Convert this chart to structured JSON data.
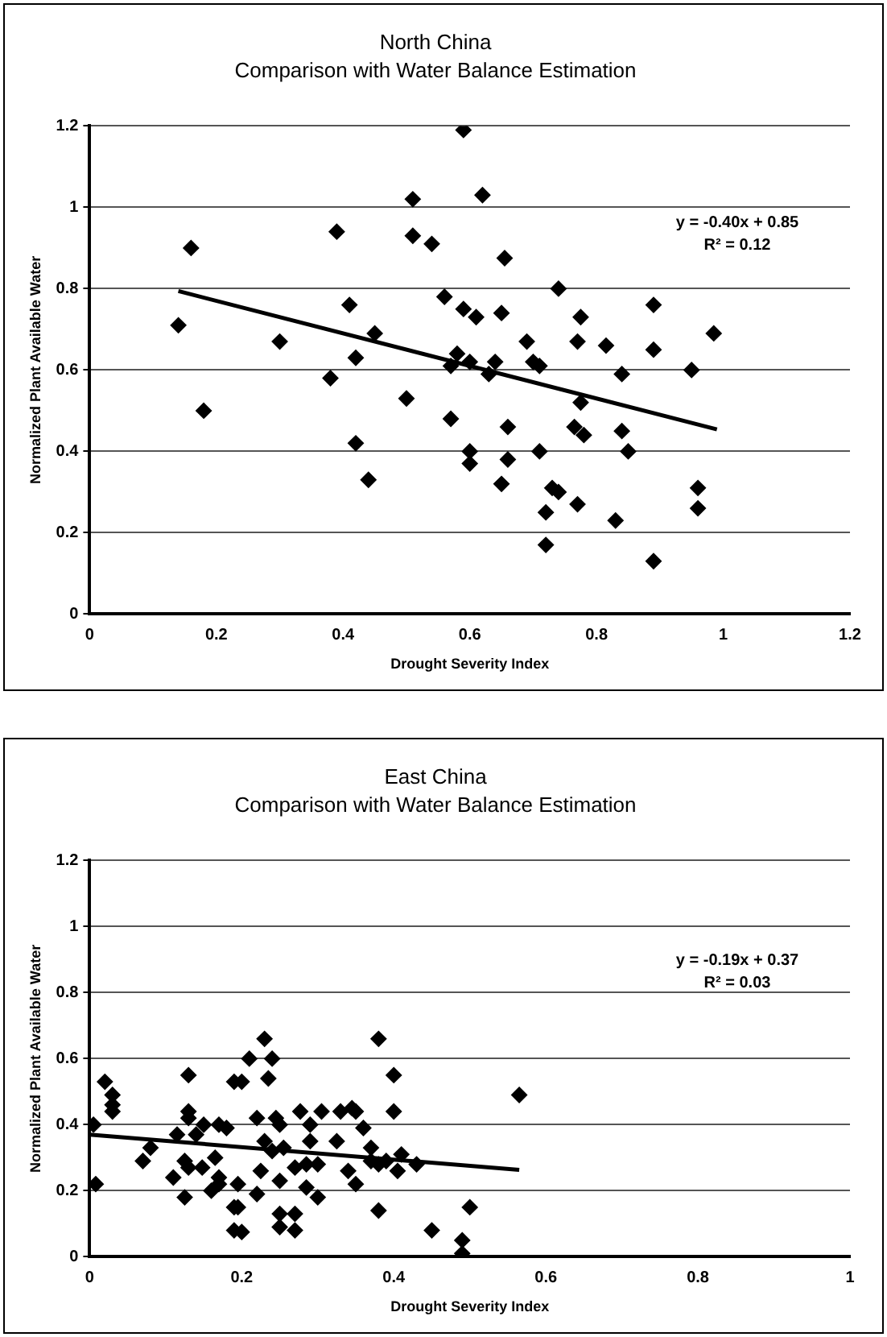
{
  "chart_data": [
    {
      "type": "scatter",
      "title": "North China",
      "subtitle": "Comparison with Water Balance Estimation",
      "xlabel": "Drought Severity Index",
      "ylabel": "Normalized Plant Available Water",
      "xlim": [
        0,
        1.2
      ],
      "xticks": [
        0,
        0.2,
        0.4,
        0.6,
        0.8,
        1,
        1.2
      ],
      "ylim": [
        0,
        1.2
      ],
      "yticks": [
        0,
        0.2,
        0.4,
        0.6,
        0.8,
        1,
        1.2
      ],
      "grid": "y",
      "legend": false,
      "annotations": [
        "y = -0.40x + 0.85",
        "R² = 0.12"
      ],
      "series": [
        {
          "type": "scatter",
          "color": "#000000",
          "marker": "diamond",
          "x": [
            0.14,
            0.16,
            0.18,
            0.3,
            0.39,
            0.41,
            0.42,
            0.42,
            0.44,
            0.45,
            0.38,
            0.5,
            0.51,
            0.51,
            0.54,
            0.56,
            0.57,
            0.57,
            0.58,
            0.59,
            0.59,
            0.61,
            0.62,
            0.6,
            0.6,
            0.6,
            0.63,
            0.655,
            0.74,
            0.65,
            0.69,
            0.7,
            0.71,
            0.64,
            0.775,
            0.77,
            0.815,
            0.84,
            0.89,
            0.89,
            0.985,
            0.95,
            0.775,
            0.765,
            0.78,
            0.84,
            0.85,
            0.66,
            0.66,
            0.65,
            0.71,
            0.73,
            0.74,
            0.77,
            0.72,
            0.72,
            0.83,
            0.89,
            0.96,
            0.96
          ],
          "values": [
            0.71,
            0.9,
            0.5,
            0.67,
            0.94,
            0.76,
            0.63,
            0.42,
            0.33,
            0.69,
            0.58,
            0.53,
            1.02,
            0.93,
            0.91,
            0.78,
            0.48,
            0.61,
            0.64,
            1.19,
            0.75,
            0.73,
            1.03,
            0.37,
            0.4,
            0.62,
            0.59,
            0.875,
            0.8,
            0.74,
            0.67,
            0.62,
            0.61,
            0.62,
            0.73,
            0.67,
            0.66,
            0.59,
            0.76,
            0.65,
            0.69,
            0.6,
            0.52,
            0.46,
            0.44,
            0.45,
            0.4,
            0.46,
            0.38,
            0.32,
            0.4,
            0.31,
            0.3,
            0.27,
            0.25,
            0.17,
            0.23,
            0.13,
            0.31,
            0.26
          ]
        },
        {
          "type": "line",
          "color": "#000000",
          "marker": "none",
          "x": [
            0.14,
            0.99
          ],
          "values": [
            0.794,
            0.454
          ]
        }
      ]
    },
    {
      "type": "scatter",
      "title": "East China",
      "subtitle": "Comparison with Water Balance Estimation",
      "xlabel": "Drought Severity Index",
      "ylabel": "Normalized Plant Available Water",
      "xlim": [
        0,
        1
      ],
      "xticks": [
        0,
        0.2,
        0.4,
        0.6,
        0.8,
        1
      ],
      "ylim": [
        0,
        1.2
      ],
      "yticks": [
        0,
        0.2,
        0.4,
        0.6,
        0.8,
        1,
        1.2
      ],
      "grid": "y",
      "legend": false,
      "annotations": [
        "y = -0.19x + 0.37",
        "R² = 0.03"
      ],
      "series": [
        {
          "type": "scatter",
          "color": "#000000",
          "marker": "diamond",
          "x": [
            0.005,
            0.008,
            0.02,
            0.03,
            0.03,
            0.03,
            0.07,
            0.08,
            0.13,
            0.11,
            0.115,
            0.125,
            0.13,
            0.13,
            0.14,
            0.15,
            0.125,
            0.13,
            0.148,
            0.16,
            0.17,
            0.19,
            0.19,
            0.19,
            0.17,
            0.18,
            0.23,
            0.21,
            0.24,
            0.2,
            0.235,
            0.22,
            0.245,
            0.25,
            0.23,
            0.24,
            0.255,
            0.277,
            0.305,
            0.29,
            0.29,
            0.325,
            0.33,
            0.345,
            0.35,
            0.36,
            0.38,
            0.4,
            0.4,
            0.37,
            0.37,
            0.38,
            0.34,
            0.35,
            0.39,
            0.41,
            0.405,
            0.43,
            0.27,
            0.285,
            0.3,
            0.165,
            0.17,
            0.195,
            0.225,
            0.22,
            0.25,
            0.285,
            0.3,
            0.38,
            0.25,
            0.27,
            0.25,
            0.27,
            0.2,
            0.195,
            0.45,
            0.5,
            0.49,
            0.49,
            0.565
          ],
          "values": [
            0.4,
            0.22,
            0.53,
            0.49,
            0.46,
            0.44,
            0.29,
            0.33,
            0.55,
            0.24,
            0.37,
            0.18,
            0.44,
            0.42,
            0.37,
            0.4,
            0.29,
            0.27,
            0.27,
            0.2,
            0.22,
            0.53,
            0.15,
            0.08,
            0.4,
            0.39,
            0.66,
            0.6,
            0.6,
            0.53,
            0.54,
            0.42,
            0.42,
            0.4,
            0.35,
            0.32,
            0.33,
            0.44,
            0.44,
            0.4,
            0.35,
            0.35,
            0.44,
            0.45,
            0.44,
            0.39,
            0.66,
            0.55,
            0.44,
            0.33,
            0.29,
            0.28,
            0.26,
            0.22,
            0.29,
            0.31,
            0.26,
            0.28,
            0.27,
            0.28,
            0.28,
            0.3,
            0.24,
            0.22,
            0.26,
            0.19,
            0.23,
            0.21,
            0.18,
            0.14,
            0.13,
            0.13,
            0.09,
            0.08,
            0.075,
            0.15,
            0.08,
            0.15,
            0.05,
            0.01,
            0.49
          ]
        },
        {
          "type": "line",
          "color": "#000000",
          "marker": "none",
          "x": [
            0,
            0.565
          ],
          "values": [
            0.37,
            0.263
          ]
        }
      ]
    }
  ]
}
